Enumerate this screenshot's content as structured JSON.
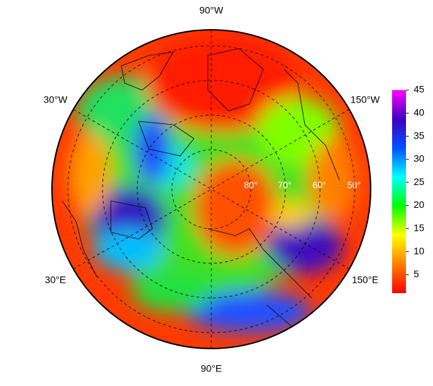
{
  "map": {
    "longitude_labels": [
      "90°W",
      "30°W",
      "150°W",
      "30°E",
      "150°E",
      "90°E"
    ],
    "latitude_labels": [
      "80°",
      "70°",
      "60°",
      "50°"
    ]
  },
  "colorbar": {
    "clim": [
      1,
      45
    ],
    "ticks": [
      5,
      10,
      15,
      20,
      25,
      30,
      35,
      40,
      45
    ],
    "colors": [
      "#ff0000",
      "#ff8000",
      "#ffff00",
      "#00ff00",
      "#00ffff",
      "#0050ff",
      "#4000c0",
      "#ff00ff"
    ]
  }
}
